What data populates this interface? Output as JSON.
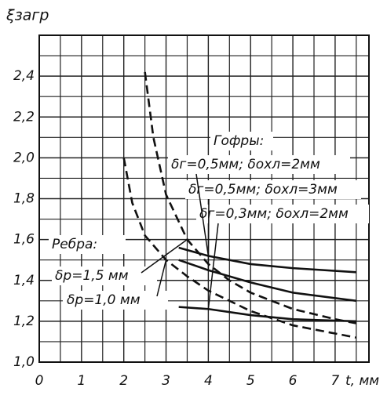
{
  "chart_data": {
    "type": "line",
    "y_label": "ξзагр",
    "x_label": "t, мм",
    "xlim": [
      0,
      7.8
    ],
    "ylim": [
      1.0,
      2.6
    ],
    "xticks": [
      0,
      1,
      2,
      3,
      4,
      5,
      6,
      7
    ],
    "yticks": [
      {
        "value": 1.0,
        "label": "1,0"
      },
      {
        "value": 1.2,
        "label": "1,2"
      },
      {
        "value": 1.4,
        "label": "1,4"
      },
      {
        "value": 1.6,
        "label": "1,6"
      },
      {
        "value": 1.8,
        "label": "1,8"
      },
      {
        "value": 2.0,
        "label": "2,0"
      },
      {
        "value": 2.2,
        "label": "2,2"
      },
      {
        "value": 2.4,
        "label": "2,4"
      }
    ],
    "grid": true,
    "minor_grid": true,
    "annotations": [
      "Гофры:",
      "Ребра:"
    ],
    "series": [
      {
        "name": "δр=1,5 мм",
        "color": "#111",
        "dashed": true,
        "x": [
          2.5,
          2.7,
          3,
          3.5,
          4,
          4.5,
          5,
          6,
          7,
          7.5
        ],
        "values": [
          2.42,
          2.1,
          1.82,
          1.6,
          1.48,
          1.4,
          1.34,
          1.26,
          1.21,
          1.19
        ]
      },
      {
        "name": "δр=1,0 мм",
        "color": "#111",
        "dashed": true,
        "x": [
          2,
          2.2,
          2.5,
          3,
          3.5,
          4,
          5,
          6,
          7,
          7.5
        ],
        "values": [
          2.0,
          1.78,
          1.62,
          1.5,
          1.42,
          1.35,
          1.25,
          1.18,
          1.14,
          1.12
        ]
      },
      {
        "name": "δг=0,5мм; δохл=2мм",
        "color": "#111",
        "dashed": false,
        "x": [
          3.3,
          4,
          5,
          6,
          7.5
        ],
        "values": [
          1.56,
          1.52,
          1.48,
          1.46,
          1.44
        ]
      },
      {
        "name": "δг=0,5мм; δохл=3мм",
        "color": "#111",
        "dashed": false,
        "x": [
          3.3,
          4,
          5,
          6,
          7.5
        ],
        "values": [
          1.5,
          1.45,
          1.39,
          1.34,
          1.3
        ]
      },
      {
        "name": "δг=0,3мм; δохл=2мм",
        "color": "#111",
        "dashed": false,
        "x": [
          3.3,
          4,
          5,
          6,
          7.5
        ],
        "values": [
          1.27,
          1.26,
          1.23,
          1.21,
          1.2
        ]
      }
    ]
  }
}
